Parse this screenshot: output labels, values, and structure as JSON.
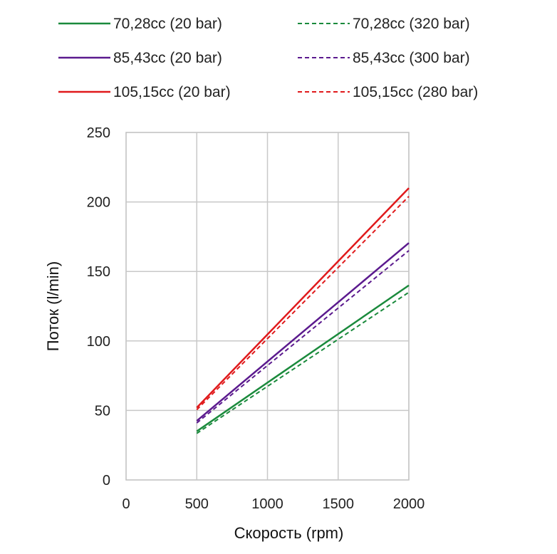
{
  "chart_data": {
    "type": "line",
    "title": "",
    "xlabel": "Скорость (rpm)",
    "ylabel": "Поток (l/min)",
    "xlim": [
      0,
      2000
    ],
    "ylim": [
      0,
      250
    ],
    "xticks": [
      0,
      500,
      1000,
      1500,
      2000
    ],
    "yticks": [
      0,
      50,
      100,
      150,
      200,
      250
    ],
    "xtick_labels": [
      "0",
      "500",
      "1000",
      "1500",
      "2000"
    ],
    "ytick_labels": [
      "0",
      "50",
      "100",
      "150",
      "200",
      "250"
    ],
    "grid": true,
    "legend_position": "top",
    "series": [
      {
        "name": "70,28cc (20 bar)",
        "color": "#1a8a3c",
        "style": "solid",
        "x": [
          500,
          2000
        ],
        "y": [
          35,
          140
        ]
      },
      {
        "name": "70,28cc (320 bar)",
        "color": "#1a8a3c",
        "style": "dashed",
        "x": [
          500,
          2000
        ],
        "y": [
          33.5,
          135
        ]
      },
      {
        "name": "85,43cc (20 bar)",
        "color": "#5b1a8e",
        "style": "solid",
        "x": [
          500,
          2000
        ],
        "y": [
          42.5,
          170.5
        ]
      },
      {
        "name": "85,43cc (300 bar)",
        "color": "#5b1a8e",
        "style": "dashed",
        "x": [
          500,
          2000
        ],
        "y": [
          41,
          165
        ]
      },
      {
        "name": "105,15cc (20 bar)",
        "color": "#e0191b",
        "style": "solid",
        "x": [
          500,
          2000
        ],
        "y": [
          52,
          210
        ]
      },
      {
        "name": "105,15cc (280 bar)",
        "color": "#e0191b",
        "style": "dashed",
        "x": [
          500,
          2000
        ],
        "y": [
          50.5,
          204
        ]
      }
    ]
  }
}
